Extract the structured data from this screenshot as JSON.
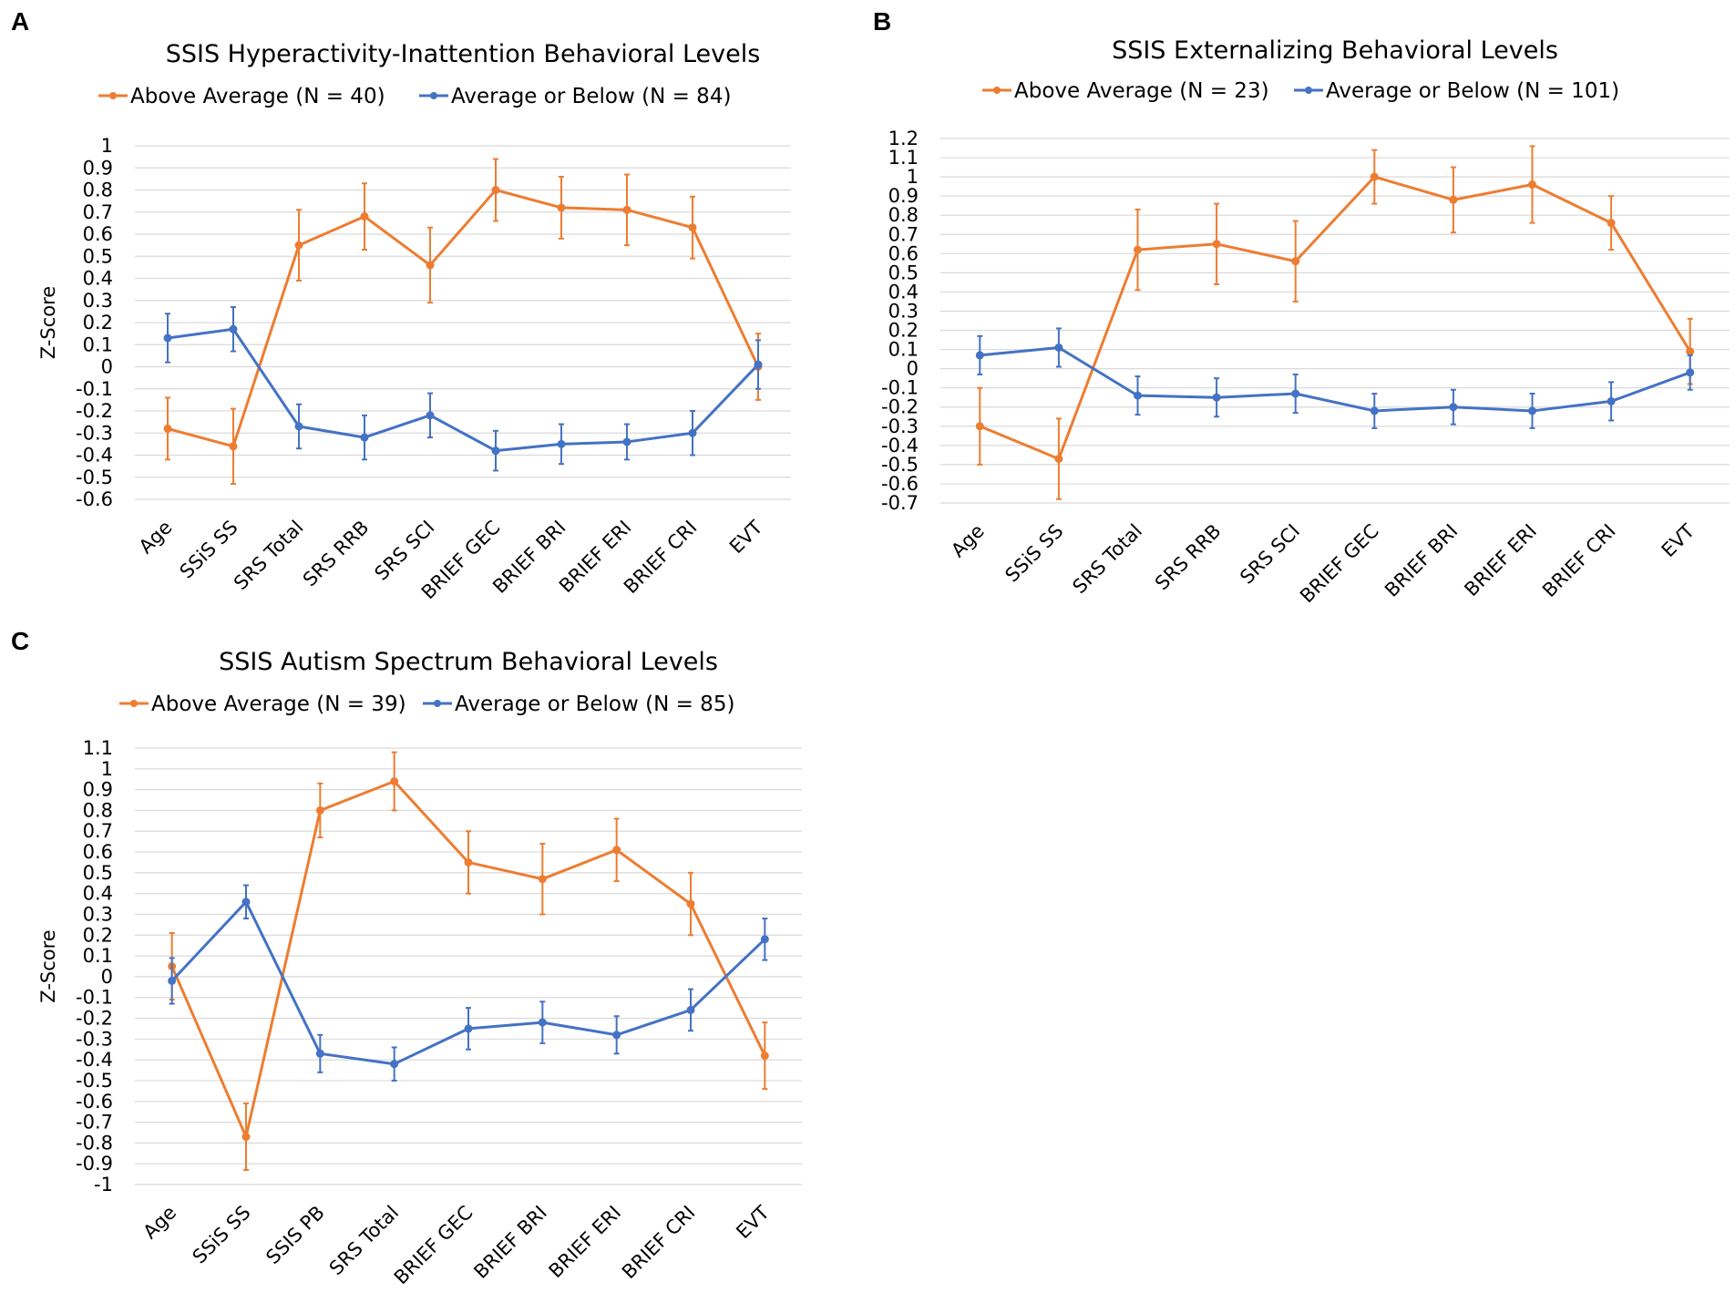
{
  "colors": {
    "above": "#ED7D31",
    "below": "#4472C4",
    "grid": "#D9D9D9",
    "text": "#000000"
  },
  "chart_data": [
    {
      "type": "line",
      "panel": "A",
      "title": "SSIS Hyperactivity-Inattention Behavioral Levels",
      "ylabel": "Z-Score",
      "xlabel": "",
      "ylim": [
        -0.6,
        1
      ],
      "ystep": 0.1,
      "grid": true,
      "legend": "top",
      "categories": [
        "Age",
        "SSiS SS",
        "SRS Total",
        "SRS RRB",
        "SRS SCI",
        "BRIEF GEC",
        "BRIEF BRI",
        "BRIEF ERI",
        "BRIEF CRI",
        "EVT"
      ],
      "series": [
        {
          "name": "Above Average (N = 40)",
          "color": "#ED7D31",
          "values": [
            -0.28,
            -0.36,
            0.55,
            0.68,
            0.46,
            0.8,
            0.72,
            0.71,
            0.63,
            0.0
          ],
          "errors": [
            0.14,
            0.17,
            0.16,
            0.15,
            0.17,
            0.14,
            0.14,
            0.16,
            0.14,
            0.15
          ]
        },
        {
          "name": "Average or Below (N = 84)",
          "color": "#4472C4",
          "values": [
            0.13,
            0.17,
            -0.27,
            -0.32,
            -0.22,
            -0.38,
            -0.35,
            -0.34,
            -0.3,
            0.01
          ],
          "errors": [
            0.11,
            0.1,
            0.1,
            0.1,
            0.1,
            0.09,
            0.09,
            0.08,
            0.1,
            0.11
          ]
        }
      ]
    },
    {
      "type": "line",
      "panel": "B",
      "title": "SSIS Externalizing Behavioral Levels",
      "ylabel": "Z-Score",
      "xlabel": "",
      "ylim": [
        -0.7,
        1.2
      ],
      "ystep": 0.1,
      "grid": true,
      "legend": "top",
      "categories": [
        "Age",
        "SSiS SS",
        "SRS Total",
        "SRS RRB",
        "SRS SCI",
        "BRIEF GEC",
        "BRIEF BRI",
        "BRIEF ERI",
        "BRIEF CRI",
        "EVT"
      ],
      "series": [
        {
          "name": "Above Average (N = 23)",
          "color": "#ED7D31",
          "values": [
            -0.3,
            -0.47,
            0.62,
            0.65,
            0.56,
            1.0,
            0.88,
            0.96,
            0.76,
            0.09
          ],
          "errors": [
            0.2,
            0.21,
            0.21,
            0.21,
            0.21,
            0.14,
            0.17,
            0.2,
            0.14,
            0.17
          ]
        },
        {
          "name": "Average or Below (N = 101)",
          "color": "#4472C4",
          "values": [
            0.07,
            0.11,
            -0.14,
            -0.15,
            -0.13,
            -0.22,
            -0.2,
            -0.22,
            -0.17,
            -0.02
          ],
          "errors": [
            0.1,
            0.1,
            0.1,
            0.1,
            0.1,
            0.09,
            0.09,
            0.09,
            0.1,
            0.09
          ]
        }
      ]
    },
    {
      "type": "line",
      "panel": "C",
      "title": "SSIS Autism Spectrum Behavioral Levels",
      "ylabel": "Z-Score",
      "xlabel": "",
      "ylim": [
        -1,
        1.1
      ],
      "ystep": 0.1,
      "grid": true,
      "legend": "top",
      "categories": [
        "Age",
        "SSiS SS",
        "SSIS PB",
        "SRS Total",
        "BRIEF GEC",
        "BRIEF BRI",
        "BRIEF ERI",
        "BRIEF CRI",
        "EVT"
      ],
      "series": [
        {
          "name": "Above Average (N = 39)",
          "color": "#ED7D31",
          "values": [
            0.05,
            -0.77,
            0.8,
            0.94,
            0.55,
            0.47,
            0.61,
            0.35,
            -0.38
          ],
          "errors": [
            0.16,
            0.16,
            0.13,
            0.14,
            0.15,
            0.17,
            0.15,
            0.15,
            0.16
          ]
        },
        {
          "name": "Average or Below (N = 85)",
          "color": "#4472C4",
          "values": [
            -0.02,
            0.36,
            -0.37,
            -0.42,
            -0.25,
            -0.22,
            -0.28,
            -0.16,
            0.18
          ],
          "errors": [
            0.11,
            0.08,
            0.09,
            0.08,
            0.1,
            0.1,
            0.09,
            0.1,
            0.1
          ]
        }
      ]
    }
  ]
}
